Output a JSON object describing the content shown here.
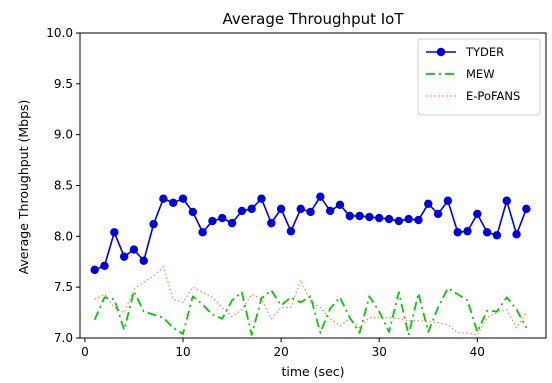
{
  "chart_data": {
    "type": "line",
    "title": "Average Throughput IoT",
    "xlabel": "time (sec)",
    "ylabel": "Average Throughput (Mbps)",
    "xlim": [
      -0.5,
      47
    ],
    "ylim": [
      7.0,
      10.0
    ],
    "xticks": [
      0,
      10,
      20,
      30,
      40
    ],
    "yticks": [
      7.0,
      7.5,
      8.0,
      8.5,
      9.0,
      9.5,
      10.0
    ],
    "ytick_labels": [
      "7.0",
      "7.5",
      "8.0",
      "8.5",
      "9.0",
      "9.5",
      "10.0"
    ],
    "legend_position": "top-right",
    "grid": false,
    "x": [
      1,
      2,
      3,
      4,
      5,
      6,
      7,
      8,
      9,
      10,
      11,
      12,
      13,
      14,
      15,
      16,
      17,
      18,
      19,
      20,
      21,
      22,
      23,
      24,
      25,
      26,
      27,
      28,
      29,
      30,
      31,
      32,
      33,
      34,
      35,
      36,
      37,
      38,
      39,
      40,
      41,
      42,
      43,
      44,
      45
    ],
    "series": [
      {
        "name": "TYDER",
        "color": "#0000dd",
        "style": "solid-markers",
        "values": [
          7.67,
          7.71,
          8.04,
          7.8,
          7.87,
          7.76,
          8.12,
          8.37,
          8.33,
          8.37,
          8.24,
          8.04,
          8.15,
          8.18,
          8.13,
          8.25,
          8.27,
          8.37,
          8.13,
          8.27,
          8.05,
          8.27,
          8.24,
          8.39,
          8.25,
          8.31,
          8.2,
          8.2,
          8.19,
          8.18,
          8.17,
          8.15,
          8.17,
          8.16,
          8.32,
          8.22,
          8.35,
          8.04,
          8.05,
          8.22,
          8.04,
          8.01,
          8.35,
          8.02,
          8.27
        ]
      },
      {
        "name": "MEW",
        "color": "#00cc00",
        "style": "dashdot",
        "values": [
          7.18,
          7.4,
          7.38,
          7.08,
          7.46,
          7.26,
          7.23,
          7.2,
          7.1,
          7.04,
          7.41,
          7.33,
          7.23,
          7.19,
          7.37,
          7.45,
          7.03,
          7.39,
          7.47,
          7.32,
          7.4,
          7.35,
          7.41,
          7.05,
          7.29,
          7.4,
          7.2,
          7.05,
          7.41,
          7.26,
          7.06,
          7.45,
          7.03,
          7.44,
          7.06,
          7.3,
          7.49,
          7.43,
          7.37,
          7.06,
          7.27,
          7.26,
          7.4,
          7.28,
          7.1
        ]
      },
      {
        "name": "E-PoFANS",
        "color": "#ff7f50",
        "style": "dotted",
        "values": [
          7.38,
          7.43,
          7.3,
          7.25,
          7.48,
          7.55,
          7.61,
          7.7,
          7.38,
          7.35,
          7.5,
          7.45,
          7.4,
          7.3,
          7.21,
          7.28,
          7.43,
          7.38,
          7.19,
          7.3,
          7.3,
          7.57,
          7.36,
          7.3,
          7.19,
          7.12,
          7.19,
          7.1,
          7.2,
          7.2,
          7.2,
          7.19,
          7.17,
          7.17,
          7.16,
          7.15,
          7.13,
          7.05,
          7.05,
          7.03,
          7.2,
          7.25,
          7.28,
          7.1,
          7.25
        ]
      }
    ]
  }
}
